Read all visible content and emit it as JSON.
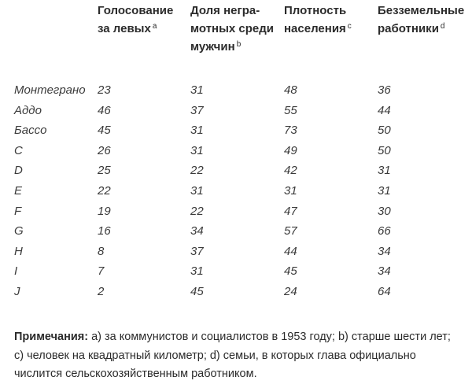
{
  "table": {
    "headers": [
      {
        "lines": [
          "Голосование",
          "за левых"
        ],
        "sup": "a"
      },
      {
        "lines": [
          "Доля негра-",
          "мотных среди",
          "мужчин"
        ],
        "sup": "b"
      },
      {
        "lines": [
          "Плотность",
          "населения"
        ],
        "sup": "c"
      },
      {
        "lines": [
          "Безземельные",
          "работники"
        ],
        "sup": "d"
      }
    ],
    "rows": [
      [
        "Монтеграно",
        "23",
        "31",
        "48",
        "36"
      ],
      [
        "Аддо",
        "46",
        "37",
        "55",
        "44"
      ],
      [
        "Бассо",
        "45",
        "31",
        "73",
        "50"
      ],
      [
        "С",
        "26",
        "31",
        "49",
        "50"
      ],
      [
        "D",
        "25",
        "22",
        "42",
        "31"
      ],
      [
        "E",
        "22",
        "31",
        "31",
        "31"
      ],
      [
        "F",
        "19",
        "22",
        "47",
        "30"
      ],
      [
        "G",
        "16",
        "34",
        "57",
        "66"
      ],
      [
        "H",
        "8",
        "37",
        "44",
        "34"
      ],
      [
        "I",
        "7",
        "31",
        "45",
        "34"
      ],
      [
        "J",
        "2",
        "45",
        "24",
        "64"
      ]
    ]
  },
  "notes": {
    "label": "Примечания:",
    "text": " a) за коммунистов и социалистов в 1953 году; b) старше шести лет; c) человек на квадратный километр; d) семьи, в которых глава официально числится сельскохозяйственным работником."
  }
}
